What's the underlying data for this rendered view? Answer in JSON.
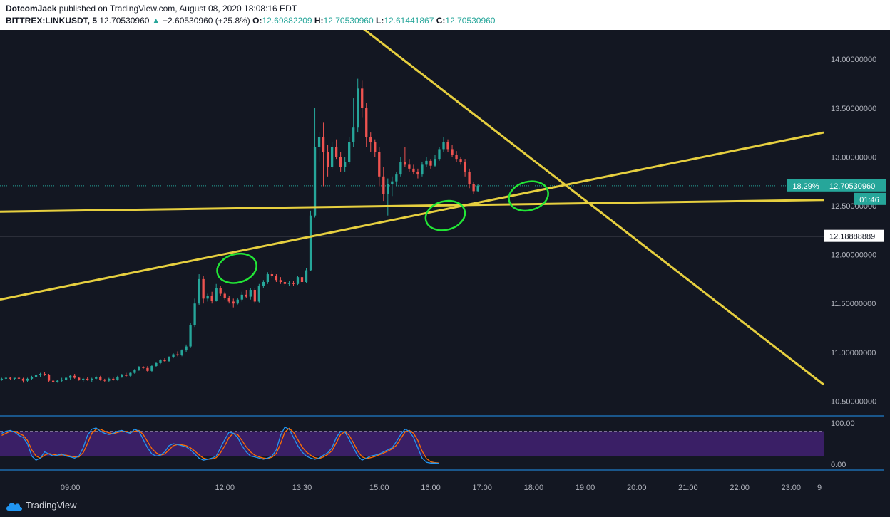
{
  "header": {
    "author": "DotcomJack",
    "published_text": "published on TradingView.com, August 08, 2020 18:08:16 EDT",
    "symbol": "BITTREX:LINKUSDT, 5",
    "last": "12.70530960",
    "change": "+2.60530960 (+25.8%)",
    "o_label": "O:",
    "o_value": "12.69882209",
    "h_label": "H:",
    "h_value": "12.70530960",
    "l_label": "L:",
    "l_value": "12.61441867",
    "c_label": "C:",
    "c_value": "12.70530960"
  },
  "price_axis": {
    "ticks": [
      "14.00000000",
      "13.50000000",
      "13.00000000",
      "12.50000000",
      "12.00000000",
      "11.50000000",
      "11.00000000",
      "10.50000000"
    ],
    "current_price_label": "12.70530960",
    "change_pct_label": "18.29%",
    "countdown_label": "01:46",
    "hline_label": "12.18888889"
  },
  "indicator_axis": {
    "ticks": [
      "100.00",
      "0.00"
    ]
  },
  "time_axis": {
    "ticks": [
      "09:00",
      "12:00",
      "13:30",
      "15:00",
      "16:00",
      "17:00",
      "18:00",
      "19:00",
      "20:00",
      "21:00",
      "22:00",
      "23:00",
      "9"
    ]
  },
  "footer": {
    "brand": "TradingView"
  },
  "colors": {
    "bg": "#131722",
    "up": "#26a69a",
    "down": "#ef5350",
    "trendline": "#e6cf3f",
    "annotation": "#22e636",
    "stoch_k": "#2196f3",
    "stoch_d": "#ff6d00",
    "stoch_band": "#3a1f66"
  },
  "chart_data": {
    "type": "candlestick",
    "price_range": [
      10.35,
      14.3
    ],
    "current_price": 12.7053096,
    "horizontal_line": 12.18888889,
    "trendlines": [
      {
        "from": [
          "07:38",
          12.44
        ],
        "to": [
          "23:38",
          12.56
        ]
      },
      {
        "from": [
          "07:38",
          11.54
        ],
        "to": [
          "23:38",
          13.25
        ]
      },
      {
        "from": [
          "13:59",
          14.6
        ],
        "to": [
          "23:38",
          10.67
        ]
      }
    ],
    "annotation_circles": [
      {
        "time": "12:14",
        "price": 11.86
      },
      {
        "time": "16:17",
        "price": 12.4
      },
      {
        "time": "17:54",
        "price": 12.6
      }
    ],
    "candles": [
      [
        "07:40",
        10.72,
        10.74,
        10.71,
        10.73
      ],
      [
        "07:45",
        10.73,
        10.75,
        10.72,
        10.74
      ],
      [
        "07:50",
        10.74,
        10.75,
        10.72,
        10.73
      ],
      [
        "07:55",
        10.73,
        10.74,
        10.72,
        10.74
      ],
      [
        "08:00",
        10.74,
        10.75,
        10.72,
        10.73
      ],
      [
        "08:05",
        10.73,
        10.74,
        10.69,
        10.71
      ],
      [
        "08:10",
        10.71,
        10.74,
        10.7,
        10.73
      ],
      [
        "08:15",
        10.73,
        10.76,
        10.72,
        10.75
      ],
      [
        "08:20",
        10.75,
        10.78,
        10.74,
        10.77
      ],
      [
        "08:25",
        10.77,
        10.79,
        10.75,
        10.78
      ],
      [
        "08:30",
        10.78,
        10.8,
        10.76,
        10.77
      ],
      [
        "08:35",
        10.77,
        10.78,
        10.7,
        10.71
      ],
      [
        "08:40",
        10.71,
        10.72,
        10.69,
        10.7
      ],
      [
        "08:45",
        10.7,
        10.72,
        10.69,
        10.71
      ],
      [
        "08:50",
        10.71,
        10.74,
        10.7,
        10.72
      ],
      [
        "08:55",
        10.72,
        10.75,
        10.71,
        10.74
      ],
      [
        "09:00",
        10.74,
        10.77,
        10.72,
        10.76
      ],
      [
        "09:05",
        10.76,
        10.78,
        10.73,
        10.74
      ],
      [
        "09:10",
        10.74,
        10.75,
        10.71,
        10.72
      ],
      [
        "09:15",
        10.72,
        10.74,
        10.7,
        10.73
      ],
      [
        "09:20",
        10.73,
        10.75,
        10.71,
        10.72
      ],
      [
        "09:25",
        10.72,
        10.74,
        10.7,
        10.73
      ],
      [
        "09:30",
        10.73,
        10.76,
        10.72,
        10.75
      ],
      [
        "09:35",
        10.75,
        10.76,
        10.71,
        10.72
      ],
      [
        "09:40",
        10.72,
        10.73,
        10.7,
        10.71
      ],
      [
        "09:45",
        10.71,
        10.74,
        10.7,
        10.73
      ],
      [
        "09:50",
        10.73,
        10.75,
        10.71,
        10.72
      ],
      [
        "09:55",
        10.72,
        10.76,
        10.71,
        10.75
      ],
      [
        "10:00",
        10.75,
        10.78,
        10.74,
        10.77
      ],
      [
        "10:05",
        10.77,
        10.79,
        10.75,
        10.76
      ],
      [
        "10:10",
        10.76,
        10.8,
        10.75,
        10.79
      ],
      [
        "10:15",
        10.79,
        10.83,
        10.78,
        10.82
      ],
      [
        "10:20",
        10.82,
        10.86,
        10.81,
        10.85
      ],
      [
        "10:25",
        10.85,
        10.86,
        10.83,
        10.84
      ],
      [
        "10:30",
        10.84,
        10.86,
        10.8,
        10.81
      ],
      [
        "10:35",
        10.81,
        10.87,
        10.8,
        10.86
      ],
      [
        "10:40",
        10.86,
        10.9,
        10.85,
        10.89
      ],
      [
        "10:45",
        10.89,
        10.93,
        10.88,
        10.92
      ],
      [
        "10:50",
        10.92,
        10.94,
        10.9,
        10.91
      ],
      [
        "10:55",
        10.91,
        10.96,
        10.9,
        10.95
      ],
      [
        "11:00",
        10.95,
        10.99,
        10.94,
        10.98
      ],
      [
        "11:05",
        10.98,
        11.01,
        10.96,
        10.97
      ],
      [
        "11:10",
        10.97,
        11.03,
        10.96,
        11.02
      ],
      [
        "11:15",
        11.02,
        11.08,
        11.0,
        11.06
      ],
      [
        "11:20",
        11.06,
        11.3,
        11.05,
        11.28
      ],
      [
        "11:25",
        11.28,
        11.55,
        11.26,
        11.5
      ],
      [
        "11:30",
        11.5,
        11.8,
        11.48,
        11.75
      ],
      [
        "11:35",
        11.75,
        11.78,
        11.5,
        11.55
      ],
      [
        "11:40",
        11.55,
        11.6,
        11.52,
        11.58
      ],
      [
        "11:45",
        11.58,
        11.62,
        11.5,
        11.53
      ],
      [
        "11:50",
        11.53,
        11.7,
        11.52,
        11.66
      ],
      [
        "11:55",
        11.66,
        11.68,
        11.58,
        11.6
      ],
      [
        "12:00",
        11.6,
        11.62,
        11.54,
        11.56
      ],
      [
        "12:05",
        11.56,
        11.58,
        11.5,
        11.52
      ],
      [
        "12:10",
        11.52,
        11.55,
        11.46,
        11.5
      ],
      [
        "12:15",
        11.5,
        11.56,
        11.49,
        11.54
      ],
      [
        "12:20",
        11.54,
        11.62,
        11.52,
        11.59
      ],
      [
        "12:25",
        11.59,
        11.64,
        11.56,
        11.57
      ],
      [
        "12:30",
        11.57,
        11.66,
        11.54,
        11.64
      ],
      [
        "12:35",
        11.64,
        11.66,
        11.5,
        11.52
      ],
      [
        "12:40",
        11.52,
        11.7,
        11.51,
        11.68
      ],
      [
        "12:45",
        11.68,
        11.74,
        11.66,
        11.72
      ],
      [
        "12:50",
        11.72,
        11.82,
        11.7,
        11.8
      ],
      [
        "12:55",
        11.8,
        11.84,
        11.76,
        11.78
      ],
      [
        "13:00",
        11.78,
        11.8,
        11.72,
        11.74
      ],
      [
        "13:05",
        11.74,
        11.77,
        11.7,
        11.72
      ],
      [
        "13:10",
        11.72,
        11.74,
        11.68,
        11.7
      ],
      [
        "13:15",
        11.7,
        11.73,
        11.68,
        11.71
      ],
      [
        "13:20",
        11.71,
        11.73,
        11.68,
        11.7
      ],
      [
        "13:25",
        11.7,
        11.78,
        11.69,
        11.77
      ],
      [
        "13:30",
        11.77,
        11.79,
        11.7,
        11.72
      ],
      [
        "13:35",
        11.72,
        11.86,
        11.71,
        11.84
      ],
      [
        "13:40",
        11.84,
        12.45,
        11.83,
        12.4
      ],
      [
        "13:45",
        12.4,
        13.5,
        12.38,
        13.1
      ],
      [
        "13:50",
        13.1,
        13.25,
        12.95,
        13.2
      ],
      [
        "13:55",
        13.2,
        13.35,
        12.7,
        13.05
      ],
      [
        "14:00",
        13.05,
        13.12,
        12.8,
        12.9
      ],
      [
        "14:05",
        12.9,
        13.15,
        12.88,
        13.1
      ],
      [
        "14:10",
        13.1,
        13.18,
        12.98,
        13.0
      ],
      [
        "14:15",
        13.0,
        13.05,
        12.85,
        12.9
      ],
      [
        "14:20",
        12.9,
        13.0,
        12.85,
        12.95
      ],
      [
        "14:25",
        12.95,
        13.2,
        12.93,
        13.15
      ],
      [
        "14:30",
        13.15,
        13.6,
        13.1,
        13.3
      ],
      [
        "14:35",
        13.3,
        13.8,
        13.25,
        13.7
      ],
      [
        "14:40",
        13.7,
        13.78,
        13.4,
        13.5
      ],
      [
        "14:45",
        13.5,
        13.55,
        13.1,
        13.2
      ],
      [
        "14:50",
        13.2,
        13.25,
        13.05,
        13.15
      ],
      [
        "14:55",
        13.15,
        13.18,
        13.0,
        13.05
      ],
      [
        "15:00",
        13.05,
        13.1,
        12.7,
        12.8
      ],
      [
        "15:05",
        12.8,
        12.9,
        12.55,
        12.62
      ],
      [
        "15:10",
        12.62,
        12.78,
        12.4,
        12.72
      ],
      [
        "15:15",
        12.72,
        12.8,
        12.6,
        12.75
      ],
      [
        "15:20",
        12.75,
        12.85,
        12.7,
        12.82
      ],
      [
        "15:25",
        12.82,
        13.0,
        12.8,
        12.95
      ],
      [
        "15:30",
        12.95,
        13.1,
        12.9,
        12.92
      ],
      [
        "15:35",
        12.92,
        12.98,
        12.85,
        12.88
      ],
      [
        "15:40",
        12.88,
        12.92,
        12.82,
        12.85
      ],
      [
        "15:45",
        12.85,
        12.88,
        12.78,
        12.82
      ],
      [
        "15:50",
        12.82,
        12.95,
        12.8,
        12.92
      ],
      [
        "15:55",
        12.92,
        13.0,
        12.9,
        12.96
      ],
      [
        "16:00",
        12.96,
        12.98,
        12.88,
        12.91
      ],
      [
        "16:05",
        12.91,
        13.02,
        12.9,
        12.98
      ],
      [
        "16:10",
        12.98,
        13.1,
        12.96,
        13.08
      ],
      [
        "16:15",
        13.08,
        13.2,
        13.05,
        13.15
      ],
      [
        "16:20",
        13.15,
        13.18,
        13.05,
        13.08
      ],
      [
        "16:25",
        13.08,
        13.12,
        13.0,
        13.02
      ],
      [
        "16:30",
        13.02,
        13.06,
        12.95,
        12.98
      ],
      [
        "16:35",
        12.98,
        13.0,
        12.92,
        12.95
      ],
      [
        "16:40",
        12.95,
        12.98,
        12.8,
        12.85
      ],
      [
        "16:45",
        12.85,
        12.88,
        12.68,
        12.72
      ],
      [
        "16:50",
        12.72,
        12.74,
        12.62,
        12.65
      ],
      [
        "16:55",
        12.65,
        12.72,
        12.64,
        12.7053096
      ]
    ],
    "stoch": {
      "type": "line",
      "range": [
        0,
        100
      ],
      "band": [
        20,
        80
      ],
      "k": [
        75,
        80,
        82,
        78,
        70,
        65,
        50,
        20,
        10,
        15,
        30,
        25,
        20,
        22,
        25,
        20,
        18,
        15,
        20,
        40,
        70,
        85,
        88,
        80,
        75,
        72,
        75,
        80,
        82,
        78,
        75,
        85,
        80,
        60,
        40,
        25,
        20,
        22,
        30,
        45,
        50,
        48,
        45,
        42,
        35,
        25,
        15,
        10,
        12,
        15,
        20,
        40,
        60,
        78,
        75,
        65,
        45,
        30,
        20,
        18,
        15,
        12,
        15,
        20,
        35,
        70,
        90,
        85,
        65,
        45,
        30,
        20,
        15,
        12,
        15,
        22,
        28,
        40,
        65,
        80,
        78,
        60,
        40,
        20,
        10,
        15,
        20,
        22,
        25,
        30,
        35,
        40,
        55,
        72,
        85,
        80,
        65,
        40,
        15,
        5,
        3,
        3,
        2
      ],
      "d": [
        70,
        75,
        80,
        80,
        75,
        70,
        58,
        35,
        20,
        15,
        22,
        26,
        24,
        22,
        23,
        22,
        20,
        18,
        18,
        28,
        50,
        75,
        85,
        85,
        80,
        76,
        74,
        77,
        80,
        80,
        77,
        80,
        82,
        72,
        55,
        38,
        28,
        22,
        25,
        35,
        45,
        48,
        47,
        45,
        40,
        32,
        23,
        15,
        12,
        13,
        16,
        28,
        45,
        65,
        75,
        72,
        58,
        42,
        30,
        22,
        18,
        15,
        14,
        17,
        26,
        50,
        78,
        87,
        78,
        60,
        42,
        30,
        22,
        16,
        14,
        18,
        24,
        33,
        52,
        72,
        79,
        70,
        52,
        32,
        18,
        14,
        16,
        19,
        23,
        27,
        32,
        37,
        46,
        62,
        78,
        82,
        75,
        58,
        32,
        14,
        6,
        4,
        3
      ]
    }
  }
}
